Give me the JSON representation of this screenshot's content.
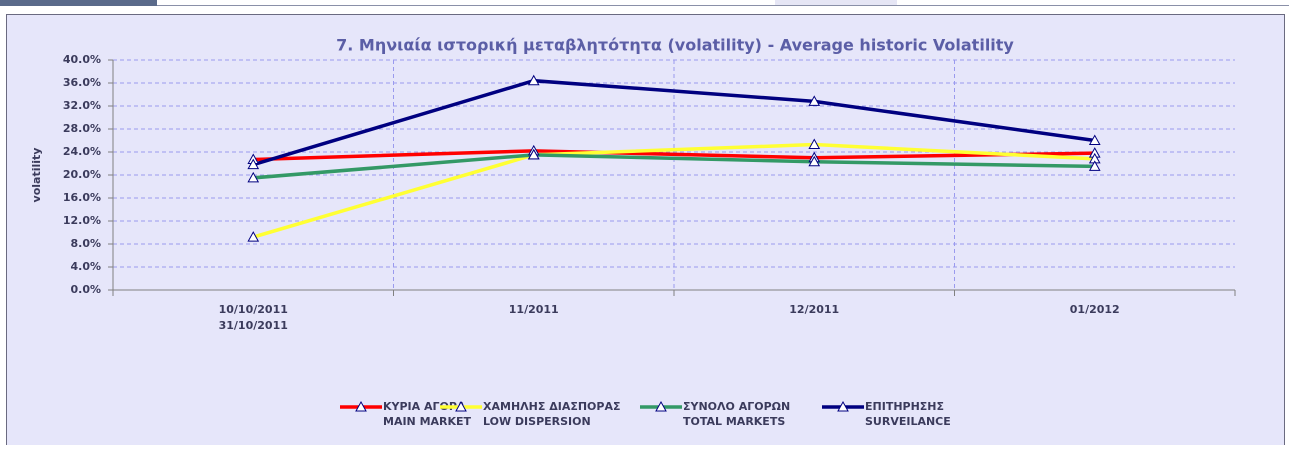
{
  "chart_data": {
    "type": "line",
    "title": "7. Μηνιαία ιστορική μεταβλητότητα (volatility) - Average historic Volatility",
    "ylabel": "volatility",
    "categories": [
      "10/10/2011\n31/10/2011",
      "11/2011",
      "12/2011",
      "01/2012"
    ],
    "series": [
      {
        "name": "ΚΥΡΙΑ ΑΓΟΡΑ\nMAIN MARKET",
        "color": "#ff0000",
        "values": [
          22.7,
          24.2,
          23.0,
          23.8
        ]
      },
      {
        "name": "ΧΑΜΗΛΗΣ ΔΙΑΣΠΟΡΑΣ\nLOW DISPERSION",
        "color": "#ffff33",
        "values": [
          9.2,
          23.5,
          25.3,
          22.8
        ]
      },
      {
        "name": "ΣΥΝΟΛΟ ΑΓΟΡΩΝ\nTOTAL MARKETS",
        "color": "#339966",
        "values": [
          19.5,
          23.5,
          22.3,
          21.5
        ]
      },
      {
        "name": "ΕΠΙΤΗΡΗΣΗΣ\nSURVEILANCE",
        "color": "#000080",
        "values": [
          21.8,
          36.4,
          32.8,
          26.0
        ]
      }
    ],
    "ylim": [
      0,
      40
    ],
    "yticks": [
      {
        "value": 0,
        "label": "0.0%"
      },
      {
        "value": 4,
        "label": "4.0%"
      },
      {
        "value": 8,
        "label": "8.0%"
      },
      {
        "value": 12,
        "label": "12.0%"
      },
      {
        "value": 16,
        "label": "16.0%"
      },
      {
        "value": 20,
        "label": "20.0%"
      },
      {
        "value": 24,
        "label": "24.0%"
      },
      {
        "value": 28,
        "label": "28.0%"
      },
      {
        "value": 32,
        "label": "32.0%"
      },
      {
        "value": 36,
        "label": "36.0%"
      },
      {
        "value": 40,
        "label": "40.0%"
      }
    ],
    "grid": true,
    "legend": "bottom"
  }
}
